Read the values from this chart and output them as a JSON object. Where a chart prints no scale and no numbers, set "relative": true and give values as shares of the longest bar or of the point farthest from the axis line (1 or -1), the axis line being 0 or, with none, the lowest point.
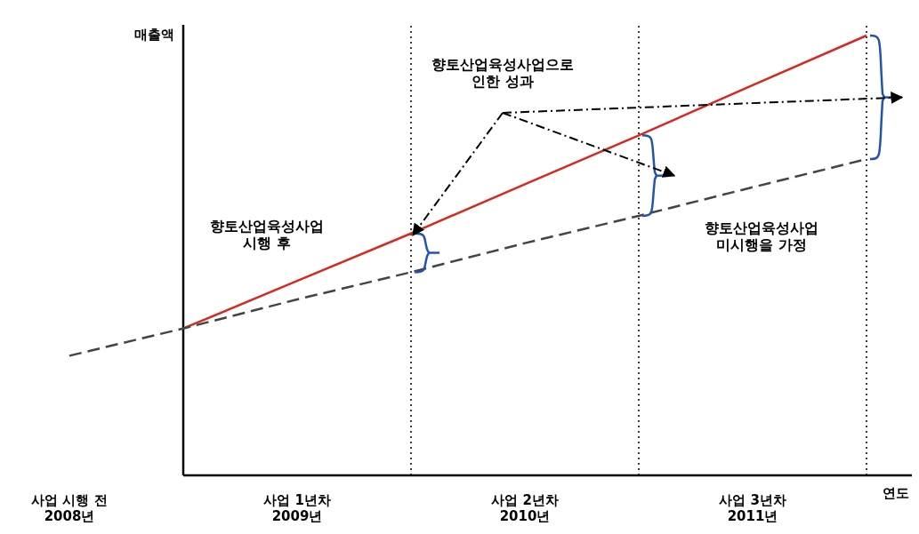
{
  "chart_data": {
    "type": "line",
    "relative": true,
    "xlabel": "연도",
    "ylabel": "매출액",
    "categories": [
      "사업 시행 전\n2008년",
      null,
      "사업 1년차\n2009년",
      null,
      "사업 2년차\n2010년",
      null,
      "사업 3년차\n2011년",
      null
    ],
    "series": [
      {
        "values": [
          null,
          0.334,
          0.442,
          0.55,
          0.662,
          0.773,
          0.887,
          1
        ],
        "color": "#d42a1f",
        "line_style": "solid"
      },
      {
        "values": [
          0.272,
          0.334,
          0.4,
          0.462,
          0.528,
          0.59,
          0.655,
          0.719
        ],
        "color": "#444444",
        "line_style": "dashed"
      }
    ],
    "grid": "x",
    "annotations": [
      "향토산업육성사업으로\n인한 성과",
      "향토산업육성사업\n시행 후",
      "향토산업육성사업\n미시행을 가정"
    ]
  }
}
